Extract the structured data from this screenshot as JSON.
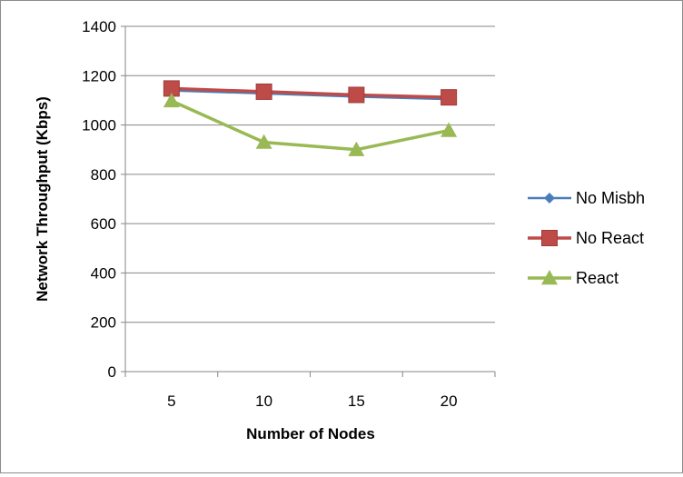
{
  "chart_data": {
    "type": "line",
    "title": "",
    "xlabel": "Number of Nodes",
    "ylabel": "Network Throughput  (Kbps)",
    "categories": [
      "5",
      "10",
      "15",
      "20"
    ],
    "ylim": [
      0,
      1400
    ],
    "yticks": [
      0,
      200,
      400,
      600,
      800,
      1000,
      1200,
      1400
    ],
    "grid": true,
    "legend_position": "right",
    "series": [
      {
        "name": "No Misbh",
        "values": [
          1140,
          1128,
          1115,
          1105
        ],
        "color": "#4a7ebb",
        "marker": "diamond"
      },
      {
        "name": "No React",
        "values": [
          1148,
          1135,
          1122,
          1112
        ],
        "color": "#be4b48",
        "marker": "square"
      },
      {
        "name": "React",
        "values": [
          1098,
          930,
          900,
          978
        ],
        "color": "#98b954",
        "marker": "triangle"
      }
    ]
  }
}
